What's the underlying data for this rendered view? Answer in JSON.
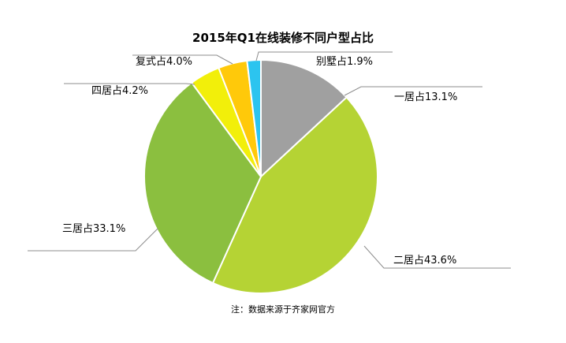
{
  "chart_data": {
    "type": "pie",
    "title": "2015年Q1在线装修不同户型占比",
    "note": "注：数据来源于齐家网官方",
    "slices": [
      {
        "label": "一居占13.1%",
        "value": 13.1,
        "color": "#a0a0a0"
      },
      {
        "label": "二居占43.6%",
        "value": 43.6,
        "color": "#b5d334"
      },
      {
        "label": "三居占33.1%",
        "value": 33.1,
        "color": "#8bbf3f"
      },
      {
        "label": "四居占4.2%",
        "value": 4.2,
        "color": "#f2ef0a"
      },
      {
        "label": "复式占4.0%",
        "value": 4.0,
        "color": "#ffc90a"
      },
      {
        "label": "别墅占1.9%",
        "value": 1.9,
        "color": "#2cc4ef"
      }
    ],
    "legend": "none"
  }
}
